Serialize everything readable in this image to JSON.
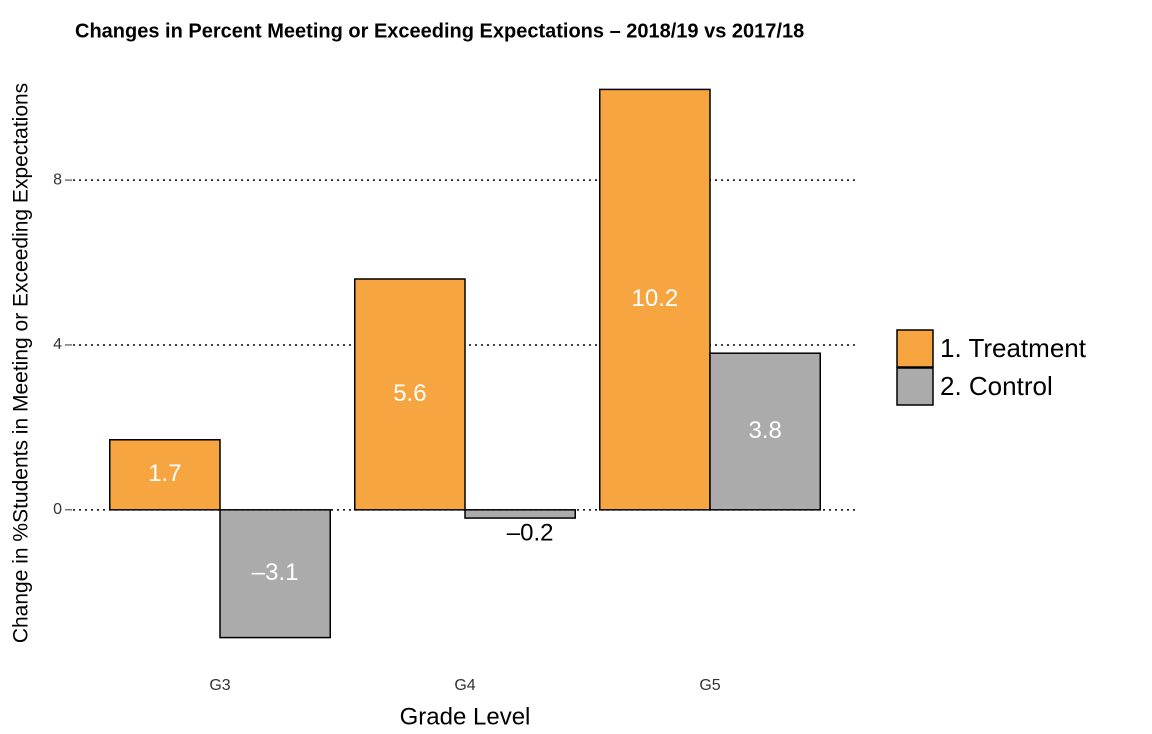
{
  "chart_data": {
    "type": "bar",
    "title": "Changes in Percent Meeting or Exceeding Expectations – 2018/19 vs 2017/18",
    "x_label": "Grade Level",
    "y_label": "Change in %Students in Meeting or Exceeding Expectations",
    "categories": [
      "G3",
      "G4",
      "G5"
    ],
    "series": [
      {
        "name": "1. Treatment",
        "color": "#f7a541",
        "values": [
          1.7,
          5.6,
          10.2
        ]
      },
      {
        "name": "2. Control",
        "color": "#ababab",
        "values": [
          -3.1,
          -0.2,
          3.8
        ],
        "value_labels": [
          "–3.1",
          "–0.2",
          "3.8"
        ]
      }
    ],
    "ylim": [
      -3.765,
      10.865
    ],
    "yticks": [
      0,
      4,
      8
    ],
    "grid": true,
    "legend": "right"
  }
}
